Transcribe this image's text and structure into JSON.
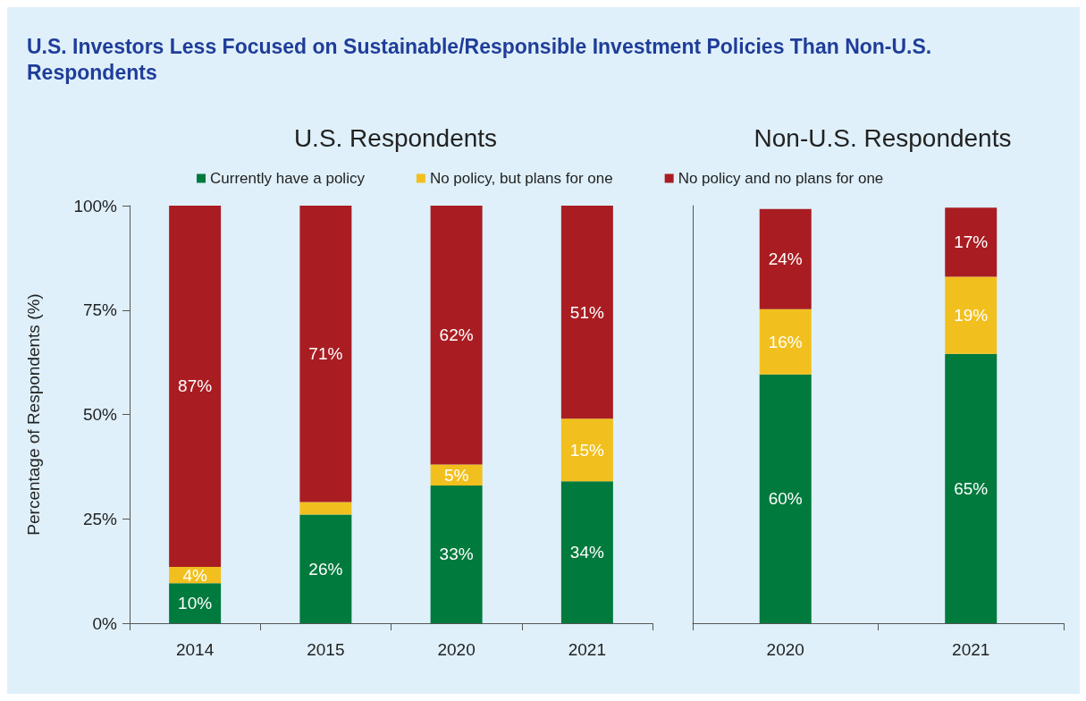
{
  "chart_data": [
    {
      "type": "bar",
      "title": "U.S. Investors Less Focused on Sustainable/Responsible Investment Policies Than Non-U.S. Respondents",
      "subtitle": "U.S. Respondents",
      "ylabel": "Percentage of Respondents (%)",
      "categories": [
        "2014",
        "2015",
        "2020",
        "2021"
      ],
      "stacked": true,
      "legend": "top",
      "ylim": [
        0,
        100
      ],
      "yticks": [
        {
          "value": 0,
          "label": "0%"
        },
        {
          "value": 25,
          "label": "25%"
        },
        {
          "value": 50,
          "label": "50%"
        },
        {
          "value": 75,
          "label": "75%"
        },
        {
          "value": 100,
          "label": "100%"
        }
      ],
      "series": [
        {
          "name": "Currently have a policy",
          "color": "#007a3d",
          "values": [
            9.6,
            26,
            33,
            34
          ],
          "value_labels": [
            "10%",
            "26%",
            "33%",
            "34%"
          ]
        },
        {
          "name": "No policy, but plans for one",
          "color": "#f2c01e",
          "values": [
            3.9,
            3,
            5,
            15
          ],
          "value_labels": [
            "4%",
            null,
            "5%",
            "15%"
          ]
        },
        {
          "name": "No policy and no plans for one",
          "color": "#a91d22",
          "values": [
            86.5,
            71,
            62,
            51
          ],
          "value_labels": [
            "87%",
            "71%",
            "62%",
            "51%"
          ]
        }
      ]
    },
    {
      "type": "bar",
      "title": "Non-U.S. Respondents",
      "categories": [
        "2020",
        "2021"
      ],
      "stacked": true,
      "tick_labels": "x",
      "ylim": [
        0,
        100
      ],
      "series": [
        {
          "color": "#007a3d",
          "values": [
            59.6,
            64.5
          ],
          "value_labels": [
            "60%",
            "65%"
          ]
        },
        {
          "color": "#f2c01e",
          "values": [
            15.6,
            18.5
          ],
          "value_labels": [
            "16%",
            "19%"
          ]
        },
        {
          "color": "#a91d22",
          "values": [
            24,
            16.5
          ],
          "value_labels": [
            "24%",
            "17%"
          ]
        }
      ]
    }
  ]
}
